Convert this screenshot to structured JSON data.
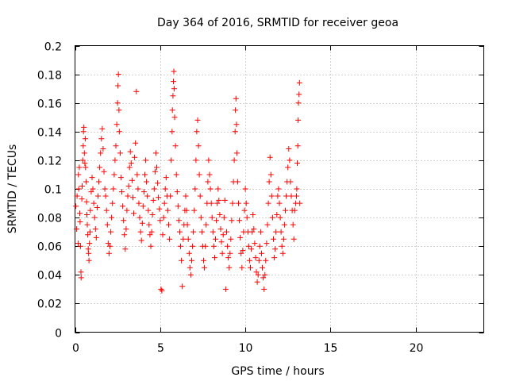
{
  "chart_data": {
    "type": "scatter",
    "title": "Day 364 of 2016, SRMTID for receiver geoa",
    "xlabel": "GPS time / hours",
    "ylabel": "SRMTID / TECUs",
    "xlim": [
      0,
      24
    ],
    "ylim": [
      0,
      0.2
    ],
    "x_ticks": [
      0,
      5,
      10,
      15,
      20
    ],
    "x_tick_labels": [
      "0",
      "5",
      "10",
      "15",
      "20"
    ],
    "y_ticks": [
      0,
      0.02,
      0.04,
      0.06,
      0.08,
      0.1,
      0.12,
      0.14,
      0.16,
      0.18,
      0.2
    ],
    "y_tick_labels": [
      "0",
      "0.02",
      "0.04",
      "0.06",
      "0.08",
      "0.1",
      "0.12",
      "0.14",
      "0.16",
      "0.18",
      "0.2"
    ],
    "grid": true,
    "marker": "plus",
    "series": [
      {
        "color": "#ff0000",
        "points": [
          [
            0.05,
            0.088
          ],
          [
            0.1,
            0.072
          ],
          [
            0.12,
            0.095
          ],
          [
            0.18,
            0.062
          ],
          [
            0.2,
            0.11
          ],
          [
            0.22,
            0.1
          ],
          [
            0.25,
            0.115
          ],
          [
            0.28,
            0.083
          ],
          [
            0.3,
            0.077
          ],
          [
            0.32,
            0.06
          ],
          [
            0.35,
            0.042
          ],
          [
            0.36,
            0.038
          ],
          [
            0.4,
            0.093
          ],
          [
            0.42,
            0.102
          ],
          [
            0.45,
            0.12
          ],
          [
            0.48,
            0.13
          ],
          [
            0.5,
            0.14
          ],
          [
            0.52,
            0.143
          ],
          [
            0.55,
            0.125
          ],
          [
            0.58,
            0.118
          ],
          [
            0.6,
            0.135
          ],
          [
            0.62,
            0.115
          ],
          [
            0.65,
            0.105
          ],
          [
            0.68,
            0.091
          ],
          [
            0.7,
            0.082
          ],
          [
            0.72,
            0.075
          ],
          [
            0.75,
            0.068
          ],
          [
            0.78,
            0.058
          ],
          [
            0.8,
            0.055
          ],
          [
            0.82,
            0.05
          ],
          [
            0.85,
            0.062
          ],
          [
            0.88,
            0.07
          ],
          [
            0.9,
            0.085
          ],
          [
            0.95,
            0.098
          ],
          [
            1.0,
            0.108
          ],
          [
            1.05,
            0.1
          ],
          [
            1.1,
            0.09
          ],
          [
            1.15,
            0.08
          ],
          [
            1.2,
            0.072
          ],
          [
            1.25,
            0.066
          ],
          [
            1.3,
            0.087
          ],
          [
            1.35,
            0.095
          ],
          [
            1.4,
            0.105
          ],
          [
            1.45,
            0.115
          ],
          [
            1.5,
            0.125
          ],
          [
            1.55,
            0.135
          ],
          [
            1.6,
            0.142
          ],
          [
            1.65,
            0.128
          ],
          [
            1.7,
            0.112
          ],
          [
            1.75,
            0.1
          ],
          [
            1.8,
            0.095
          ],
          [
            1.85,
            0.085
          ],
          [
            1.9,
            0.075
          ],
          [
            1.95,
            0.062
          ],
          [
            2.0,
            0.055
          ],
          [
            2.05,
            0.06
          ],
          [
            2.1,
            0.07
          ],
          [
            2.15,
            0.08
          ],
          [
            2.2,
            0.09
          ],
          [
            2.25,
            0.1
          ],
          [
            2.3,
            0.11
          ],
          [
            2.35,
            0.12
          ],
          [
            2.4,
            0.13
          ],
          [
            2.45,
            0.145
          ],
          [
            2.5,
            0.16
          ],
          [
            2.52,
            0.172
          ],
          [
            2.55,
            0.18
          ],
          [
            2.58,
            0.155
          ],
          [
            2.6,
            0.14
          ],
          [
            2.65,
            0.125
          ],
          [
            2.7,
            0.108
          ],
          [
            2.75,
            0.098
          ],
          [
            2.8,
            0.088
          ],
          [
            2.85,
            0.078
          ],
          [
            2.9,
            0.068
          ],
          [
            2.95,
            0.058
          ],
          [
            3.0,
            0.072
          ],
          [
            3.05,
            0.085
          ],
          [
            3.1,
            0.095
          ],
          [
            3.15,
            0.102
          ],
          [
            3.2,
            0.115
          ],
          [
            3.25,
            0.126
          ],
          [
            3.3,
            0.118
          ],
          [
            3.35,
            0.106
          ],
          [
            3.4,
            0.094
          ],
          [
            3.45,
            0.083
          ],
          [
            3.5,
            0.122
          ],
          [
            3.55,
            0.132
          ],
          [
            3.6,
            0.168
          ],
          [
            3.65,
            0.11
          ],
          [
            3.7,
            0.1
          ],
          [
            3.75,
            0.09
          ],
          [
            3.8,
            0.08
          ],
          [
            3.85,
            0.07
          ],
          [
            3.9,
            0.064
          ],
          [
            3.95,
            0.076
          ],
          [
            4.0,
            0.088
          ],
          [
            4.05,
            0.098
          ],
          [
            4.1,
            0.11
          ],
          [
            4.15,
            0.12
          ],
          [
            4.2,
            0.105
          ],
          [
            4.25,
            0.095
          ],
          [
            4.3,
            0.085
          ],
          [
            4.35,
            0.075
          ],
          [
            4.4,
            0.068
          ],
          [
            4.45,
            0.06
          ],
          [
            4.5,
            0.07
          ],
          [
            4.55,
            0.082
          ],
          [
            4.6,
            0.092
          ],
          [
            4.65,
            0.1
          ],
          [
            4.7,
            0.112
          ],
          [
            4.75,
            0.125
          ],
          [
            4.8,
            0.115
          ],
          [
            4.85,
            0.104
          ],
          [
            4.9,
            0.094
          ],
          [
            4.95,
            0.086
          ],
          [
            5.0,
            0.078
          ],
          [
            5.05,
            0.03
          ],
          [
            5.1,
            0.029
          ],
          [
            5.15,
            0.068
          ],
          [
            5.2,
            0.08
          ],
          [
            5.25,
            0.09
          ],
          [
            5.3,
            0.1
          ],
          [
            5.35,
            0.108
          ],
          [
            5.4,
            0.095
          ],
          [
            5.45,
            0.085
          ],
          [
            5.5,
            0.075
          ],
          [
            5.55,
            0.065
          ],
          [
            5.6,
            0.095
          ],
          [
            5.65,
            0.12
          ],
          [
            5.7,
            0.14
          ],
          [
            5.72,
            0.155
          ],
          [
            5.75,
            0.165
          ],
          [
            5.78,
            0.175
          ],
          [
            5.8,
            0.182
          ],
          [
            5.82,
            0.17
          ],
          [
            5.85,
            0.15
          ],
          [
            5.9,
            0.13
          ],
          [
            5.95,
            0.11
          ],
          [
            6.0,
            0.098
          ],
          [
            6.05,
            0.088
          ],
          [
            6.1,
            0.078
          ],
          [
            6.15,
            0.07
          ],
          [
            6.2,
            0.06
          ],
          [
            6.25,
            0.05
          ],
          [
            6.3,
            0.032
          ],
          [
            6.35,
            0.065
          ],
          [
            6.4,
            0.075
          ],
          [
            6.45,
            0.085
          ],
          [
            6.5,
            0.095
          ],
          [
            6.55,
            0.085
          ],
          [
            6.6,
            0.075
          ],
          [
            6.65,
            0.065
          ],
          [
            6.7,
            0.055
          ],
          [
            6.75,
            0.045
          ],
          [
            6.8,
            0.04
          ],
          [
            6.85,
            0.05
          ],
          [
            6.9,
            0.06
          ],
          [
            6.95,
            0.07
          ],
          [
            7.0,
            0.085
          ],
          [
            7.05,
            0.1
          ],
          [
            7.1,
            0.12
          ],
          [
            7.15,
            0.14
          ],
          [
            7.2,
            0.148
          ],
          [
            7.25,
            0.13
          ],
          [
            7.3,
            0.11
          ],
          [
            7.35,
            0.095
          ],
          [
            7.4,
            0.08
          ],
          [
            7.45,
            0.07
          ],
          [
            7.5,
            0.06
          ],
          [
            7.55,
            0.05
          ],
          [
            7.6,
            0.045
          ],
          [
            7.65,
            0.06
          ],
          [
            7.7,
            0.075
          ],
          [
            7.75,
            0.09
          ],
          [
            7.8,
            0.105
          ],
          [
            7.85,
            0.12
          ],
          [
            7.9,
            0.11
          ],
          [
            7.95,
            0.1
          ],
          [
            8.0,
            0.09
          ],
          [
            8.05,
            0.08
          ],
          [
            8.1,
            0.07
          ],
          [
            8.15,
            0.06
          ],
          [
            8.2,
            0.052
          ],
          [
            8.25,
            0.065
          ],
          [
            8.3,
            0.078
          ],
          [
            8.35,
            0.09
          ],
          [
            8.4,
            0.1
          ],
          [
            8.45,
            0.092
          ],
          [
            8.5,
            0.082
          ],
          [
            8.55,
            0.072
          ],
          [
            8.6,
            0.063
          ],
          [
            8.65,
            0.055
          ],
          [
            8.7,
            0.068
          ],
          [
            8.75,
            0.08
          ],
          [
            8.8,
            0.092
          ],
          [
            8.85,
            0.03
          ],
          [
            8.9,
            0.07
          ],
          [
            8.95,
            0.06
          ],
          [
            9.0,
            0.052
          ],
          [
            9.05,
            0.045
          ],
          [
            9.1,
            0.055
          ],
          [
            9.15,
            0.065
          ],
          [
            9.2,
            0.078
          ],
          [
            9.25,
            0.09
          ],
          [
            9.3,
            0.105
          ],
          [
            9.35,
            0.12
          ],
          [
            9.4,
            0.14
          ],
          [
            9.42,
            0.155
          ],
          [
            9.45,
            0.163
          ],
          [
            9.48,
            0.145
          ],
          [
            9.5,
            0.125
          ],
          [
            9.55,
            0.105
          ],
          [
            9.6,
            0.09
          ],
          [
            9.65,
            0.078
          ],
          [
            9.7,
            0.066
          ],
          [
            9.75,
            0.055
          ],
          [
            9.8,
            0.045
          ],
          [
            9.85,
            0.057
          ],
          [
            9.9,
            0.07
          ],
          [
            9.95,
            0.085
          ],
          [
            10.0,
            0.1
          ],
          [
            10.05,
            0.09
          ],
          [
            10.1,
            0.08
          ],
          [
            10.15,
            0.07
          ],
          [
            10.2,
            0.06
          ],
          [
            10.25,
            0.05
          ],
          [
            10.3,
            0.045
          ],
          [
            10.35,
            0.058
          ],
          [
            10.4,
            0.07
          ],
          [
            10.45,
            0.082
          ],
          [
            10.5,
            0.072
          ],
          [
            10.55,
            0.062
          ],
          [
            10.6,
            0.052
          ],
          [
            10.65,
            0.042
          ],
          [
            10.7,
            0.035
          ],
          [
            10.75,
            0.04
          ],
          [
            10.8,
            0.05
          ],
          [
            10.85,
            0.06
          ],
          [
            10.9,
            0.07
          ],
          [
            10.95,
            0.055
          ],
          [
            11.0,
            0.045
          ],
          [
            11.05,
            0.038
          ],
          [
            11.1,
            0.03
          ],
          [
            11.15,
            0.04
          ],
          [
            11.2,
            0.05
          ],
          [
            11.25,
            0.062
          ],
          [
            11.3,
            0.075
          ],
          [
            11.35,
            0.09
          ],
          [
            11.4,
            0.105
          ],
          [
            11.45,
            0.122
          ],
          [
            11.5,
            0.11
          ],
          [
            11.55,
            0.095
          ],
          [
            11.6,
            0.08
          ],
          [
            11.65,
            0.065
          ],
          [
            11.7,
            0.052
          ],
          [
            11.75,
            0.058
          ],
          [
            11.8,
            0.07
          ],
          [
            11.85,
            0.082
          ],
          [
            11.9,
            0.095
          ],
          [
            11.95,
            0.1
          ],
          [
            12.0,
            0.09
          ],
          [
            12.05,
            0.08
          ],
          [
            12.1,
            0.07
          ],
          [
            12.15,
            0.06
          ],
          [
            12.2,
            0.055
          ],
          [
            12.25,
            0.065
          ],
          [
            12.3,
            0.075
          ],
          [
            12.35,
            0.085
          ],
          [
            12.4,
            0.095
          ],
          [
            12.45,
            0.105
          ],
          [
            12.5,
            0.115
          ],
          [
            12.55,
            0.128
          ],
          [
            12.6,
            0.12
          ],
          [
            12.65,
            0.105
          ],
          [
            12.7,
            0.095
          ],
          [
            12.75,
            0.085
          ],
          [
            12.8,
            0.075
          ],
          [
            12.85,
            0.065
          ],
          [
            12.9,
            0.085
          ],
          [
            12.95,
            0.09
          ],
          [
            13.0,
            0.095
          ],
          [
            13.02,
            0.1
          ],
          [
            13.05,
            0.118
          ],
          [
            13.08,
            0.13
          ],
          [
            13.1,
            0.148
          ],
          [
            13.12,
            0.16
          ],
          [
            13.15,
            0.166
          ],
          [
            13.18,
            0.174
          ],
          [
            13.2,
            0.09
          ]
        ]
      }
    ]
  }
}
